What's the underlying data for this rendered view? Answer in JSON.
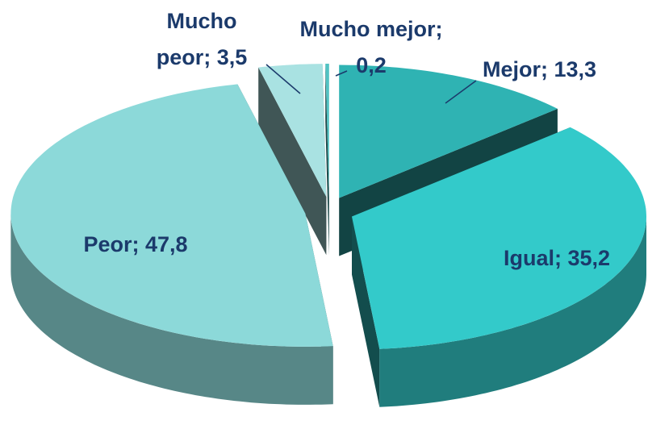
{
  "chart_data": {
    "type": "pie3d",
    "values": [
      13.3,
      35.2,
      47.8,
      3.5,
      0.2
    ],
    "value_labels": [
      [
        "Mejor; 13,3"
      ],
      [
        "Igual; 35,2"
      ],
      [
        "Peor; 47,8"
      ],
      [
        "Mucho",
        "peor; 3,5"
      ],
      [
        "Mucho mejor;",
        "0,2"
      ]
    ],
    "colors": [
      "#2fb3b3",
      "#33caca",
      "#8cd9d9",
      "#a9e2e2",
      "#52c3c3"
    ]
  }
}
